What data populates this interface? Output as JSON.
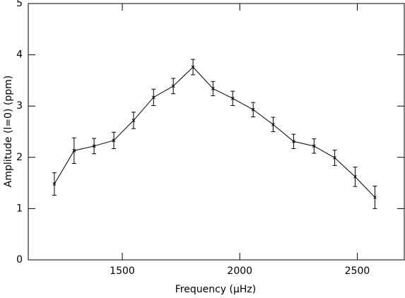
{
  "chart_data": {
    "type": "line",
    "x_label": "Frequency (μHz)",
    "y_label": "Amplitude (l=0)  (ppm)",
    "x": [
      1211,
      1295,
      1380,
      1464,
      1548,
      1633,
      1717,
      1801,
      1886,
      1970,
      2057,
      2142,
      2229,
      2316,
      2404,
      2491,
      2575
    ],
    "series": [
      {
        "color": "#000000",
        "values": [
          1.48,
          2.13,
          2.22,
          2.33,
          2.72,
          3.17,
          3.39,
          3.76,
          3.34,
          3.15,
          2.93,
          2.64,
          2.31,
          2.22,
          1.99,
          1.62,
          1.22
        ],
        "errors": [
          0.22,
          0.25,
          0.15,
          0.16,
          0.16,
          0.16,
          0.15,
          0.15,
          0.14,
          0.14,
          0.14,
          0.14,
          0.14,
          0.14,
          0.15,
          0.19,
          0.22
        ]
      }
    ],
    "xlim": [
      1100,
      2700
    ],
    "xticks": [
      1500,
      2000,
      2500
    ],
    "ylim": [
      0,
      5
    ],
    "yticks": [
      0,
      1,
      2,
      3,
      4,
      5
    ]
  }
}
